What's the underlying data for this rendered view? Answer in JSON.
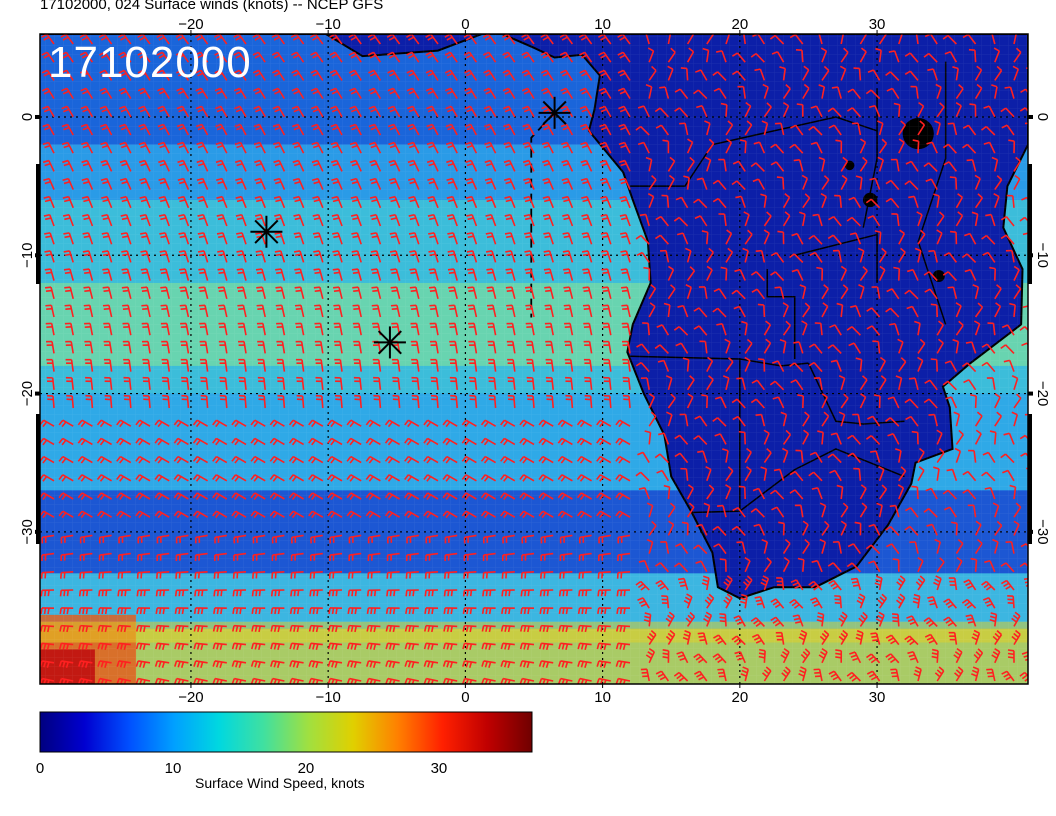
{
  "header": {
    "title": "17102000, 024 Surface winds (knots) -- NCEP GFS"
  },
  "map": {
    "time_stamp": "17102000",
    "lon_ticks": [
      -20,
      -10,
      0,
      10,
      20,
      30
    ],
    "lat_ticks": [
      0,
      -10,
      -20,
      -30
    ],
    "lon_range": [
      -31,
      41
    ],
    "lat_range": [
      -41,
      6
    ],
    "markers": [
      {
        "name": "marker-a",
        "lon": 6.5,
        "lat": 0.3
      },
      {
        "name": "marker-b",
        "lon": -14.5,
        "lat": -8.3
      },
      {
        "name": "marker-c",
        "lon": -5.5,
        "lat": -16.3
      }
    ],
    "barb_color": "#ff2020"
  },
  "colorbar": {
    "ticks": [
      0,
      10,
      20,
      30
    ],
    "range": [
      0,
      37
    ],
    "title": "Surface Wind Speed, knots",
    "colors": [
      "#000080",
      "#0000d0",
      "#0050ff",
      "#00a0ff",
      "#00d8e0",
      "#40e0a0",
      "#a0e040",
      "#e0d000",
      "#ff8000",
      "#ff2000",
      "#c00000",
      "#700000"
    ]
  }
}
